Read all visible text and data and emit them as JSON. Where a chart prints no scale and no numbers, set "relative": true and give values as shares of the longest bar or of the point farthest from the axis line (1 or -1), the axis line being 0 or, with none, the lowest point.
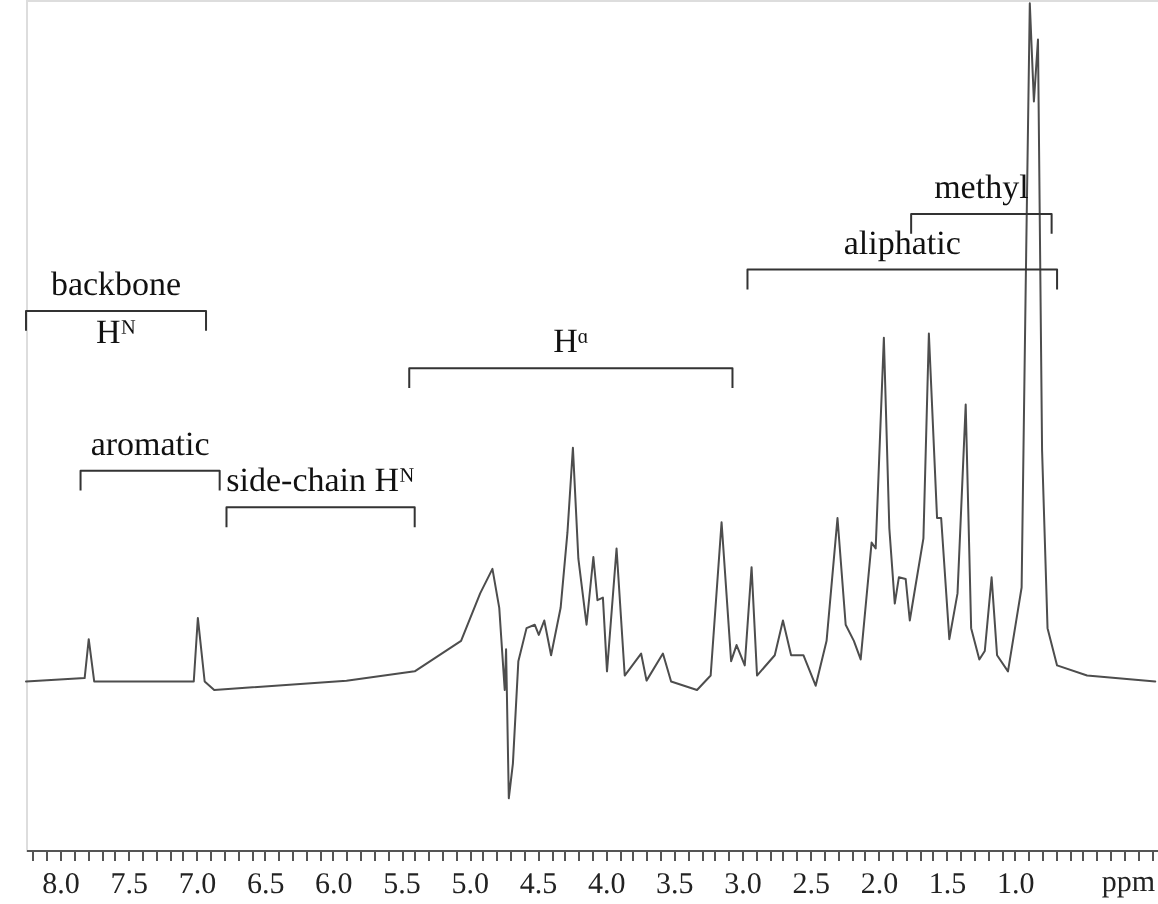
{
  "chart_data": {
    "type": "line",
    "relative": true,
    "xlabel": "ppm",
    "xlim": [
      8.25,
      -0.05
    ],
    "xticks": [
      {
        "value": 8,
        "label": "8.0"
      },
      7.5,
      {
        "value": 7,
        "label": "7.0"
      },
      6.5,
      {
        "value": 6,
        "label": "6.0"
      },
      5.5,
      {
        "value": 5,
        "label": "5.0"
      },
      4.5,
      {
        "value": 4,
        "label": "4.0"
      },
      3.5,
      {
        "value": 3,
        "label": "3.0"
      },
      2.5,
      {
        "value": 2,
        "label": "2.0"
      },
      1.5,
      {
        "value": 1,
        "label": "1.0"
      }
    ],
    "grid": false,
    "marker": "none",
    "line_style": "solid",
    "series": [
      {
        "color": "#4d4d4d",
        "x": [
          8.25,
          7.82,
          7.79,
          7.75,
          7.02,
          6.99,
          6.94,
          6.87,
          5.9,
          5.4,
          5.06,
          4.92,
          4.83,
          4.78,
          4.74,
          4.73,
          4.71,
          4.68,
          4.64,
          4.58,
          4.52,
          4.49,
          4.45,
          4.4,
          4.33,
          4.28,
          4.24,
          4.2,
          4.14,
          4.09,
          4.06,
          4.02,
          3.99,
          3.92,
          3.86,
          3.74,
          3.7,
          3.58,
          3.52,
          3.33,
          3.23,
          3.15,
          3.08,
          3.04,
          2.98,
          2.93,
          2.89,
          2.76,
          2.7,
          2.64,
          2.55,
          2.46,
          2.38,
          2.3,
          2.24,
          2.18,
          2.13,
          2.05,
          2.02,
          1.96,
          1.92,
          1.88,
          1.85,
          1.8,
          1.77,
          1.73,
          1.67,
          1.63,
          1.57,
          1.54,
          1.48,
          1.42,
          1.36,
          1.32,
          1.26,
          1.22,
          1.17,
          1.13,
          1.05,
          0.95,
          0.92,
          0.89,
          0.86,
          0.83,
          0.8,
          0.76,
          0.69,
          0.47,
          -0.03
        ],
        "values": [
          0.199,
          0.203,
          0.249,
          0.199,
          0.199,
          0.274,
          0.199,
          0.189,
          0.2,
          0.211,
          0.247,
          0.303,
          0.332,
          0.286,
          0.189,
          0.237,
          0.061,
          0.102,
          0.223,
          0.262,
          0.266,
          0.254,
          0.271,
          0.23,
          0.286,
          0.375,
          0.475,
          0.344,
          0.266,
          0.346,
          0.295,
          0.298,
          0.211,
          0.356,
          0.206,
          0.232,
          0.2,
          0.232,
          0.199,
          0.189,
          0.206,
          0.387,
          0.223,
          0.242,
          0.218,
          0.334,
          0.206,
          0.23,
          0.271,
          0.23,
          0.23,
          0.194,
          0.247,
          0.392,
          0.266,
          0.247,
          0.225,
          0.363,
          0.356,
          0.605,
          0.38,
          0.291,
          0.322,
          0.32,
          0.271,
          0.31,
          0.368,
          0.61,
          0.392,
          0.392,
          0.249,
          0.303,
          0.526,
          0.262,
          0.225,
          0.235,
          0.322,
          0.23,
          0.211,
          0.31,
          0.666,
          1.0,
          0.884,
          0.957,
          0.472,
          0.262,
          0.218,
          0.206,
          0.199
        ]
      }
    ],
    "annotations": [
      "backbone\nHᴺ",
      "aromatic",
      "side-chain Hᴺ",
      "Hᵅ",
      "aliphatic",
      "methyl"
    ]
  }
}
